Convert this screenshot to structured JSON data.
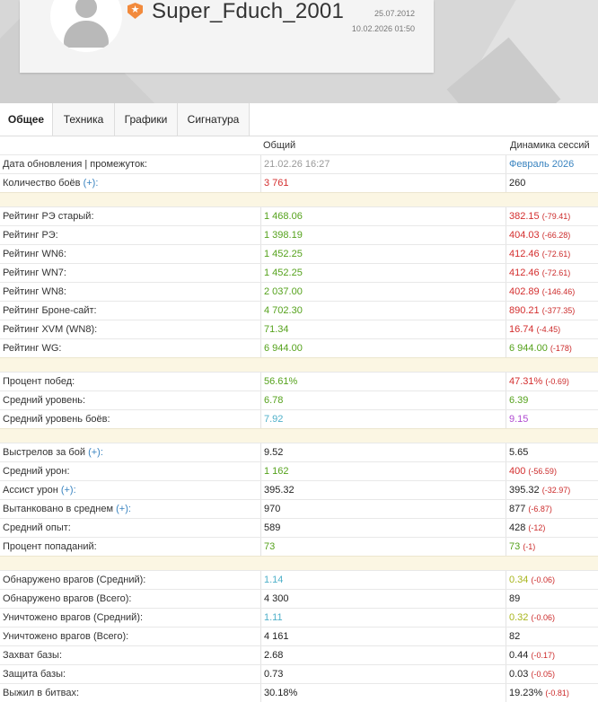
{
  "header": {
    "username": "Super_Fduch_2001",
    "created_date": "25.07.2012",
    "current_datetime": "10.02.2026 01:50"
  },
  "tabs": [
    {
      "label": "Общее",
      "active": true
    },
    {
      "label": "Техника",
      "active": false
    },
    {
      "label": "Графики",
      "active": false
    },
    {
      "label": "Сигнатура",
      "active": false
    }
  ],
  "columns": {
    "overall": "Общий",
    "sessions": "Динамика сессий"
  },
  "colors": {
    "green": "#55a21c",
    "red": "#d42e2e",
    "teal": "#4fb0c9",
    "purple": "#b04bd1",
    "olive": "#a8b51c",
    "blue": "#3a84c0",
    "separator": "#fbf6e3"
  },
  "rows": {
    "update": {
      "label": "Дата обновления | промежуток:",
      "overall": "21.02.26 16:27",
      "session": "Февраль 2026"
    },
    "battles": {
      "label": "Количество боёв",
      "plus": "(+):",
      "overall": "3 761",
      "session": "260"
    },
    "re_old": {
      "label": "Рейтинг РЭ старый:",
      "overall": "1 468.06",
      "session": "382.15",
      "delta": "(-79.41)"
    },
    "re": {
      "label": "Рейтинг РЭ:",
      "overall": "1 398.19",
      "session": "404.03",
      "delta": "(-66.28)"
    },
    "wn6": {
      "label": "Рейтинг WN6:",
      "overall": "1 452.25",
      "session": "412.46",
      "delta": "(-72.61)"
    },
    "wn7": {
      "label": "Рейтинг WN7:",
      "overall": "1 452.25",
      "session": "412.46",
      "delta": "(-72.61)"
    },
    "wn8": {
      "label": "Рейтинг WN8:",
      "overall": "2 037.00",
      "session": "402.89",
      "delta": "(-146.46)"
    },
    "bronesite": {
      "label": "Рейтинг Броне-сайт:",
      "overall": "4 702.30",
      "session": "890.21",
      "delta": "(-377.35)"
    },
    "xvm": {
      "label": "Рейтинг XVM (WN8):",
      "overall": "71.34",
      "session": "16.74",
      "delta": "(-4.45)"
    },
    "wg": {
      "label": "Рейтинг WG:",
      "overall": "6 944.00",
      "session": "6 944.00",
      "delta": "(-178)"
    },
    "winrate": {
      "label": "Процент побед:",
      "overall": "56.61%",
      "session": "47.31%",
      "delta": "(-0.69)"
    },
    "avg_tier": {
      "label": "Средний уровень:",
      "overall": "6.78",
      "session": "6.39"
    },
    "avg_battle_tier": {
      "label": "Средний уровень боёв:",
      "overall": "7.92",
      "session": "9.15"
    },
    "shots": {
      "label": "Выстрелов за бой",
      "plus": "(+):",
      "overall": "9.52",
      "session": "5.65"
    },
    "avg_dmg": {
      "label": "Средний урон:",
      "overall": "1 162",
      "session": "400",
      "delta": "(-56.59)"
    },
    "assist": {
      "label": "Ассист урон",
      "plus": "(+):",
      "overall": "395.32",
      "session": "395.32",
      "delta": "(-32.97)"
    },
    "tanked": {
      "label": "Вытанковано в среднем",
      "plus": "(+):",
      "overall": "970",
      "session": "877",
      "delta": "(-6.87)"
    },
    "avg_xp": {
      "label": "Средний опыт:",
      "overall": "589",
      "session": "428",
      "delta": "(-12)"
    },
    "hitrate": {
      "label": "Процент попаданий:",
      "overall": "73",
      "session": "73",
      "delta": "(-1)"
    },
    "spotted_avg": {
      "label": "Обнаружено врагов (Средний):",
      "overall": "1.14",
      "session": "0.34",
      "delta": "(-0.06)"
    },
    "spotted_total": {
      "label": "Обнаружено врагов (Всего):",
      "overall": "4 300",
      "session": "89"
    },
    "killed_avg": {
      "label": "Уничтожено врагов (Средний):",
      "overall": "1.11",
      "session": "0.32",
      "delta": "(-0.06)"
    },
    "killed_total": {
      "label": "Уничтожено врагов (Всего):",
      "overall": "4 161",
      "session": "82"
    },
    "capture": {
      "label": "Захват базы:",
      "overall": "2.68",
      "session": "0.44",
      "delta": "(-0.17)"
    },
    "defense": {
      "label": "Защита базы:",
      "overall": "0.73",
      "session": "0.03",
      "delta": "(-0.05)"
    },
    "survived": {
      "label": "Выжил в битвах:",
      "overall": "30.18%",
      "session": "19.23%",
      "delta": "(-0.81)"
    }
  }
}
